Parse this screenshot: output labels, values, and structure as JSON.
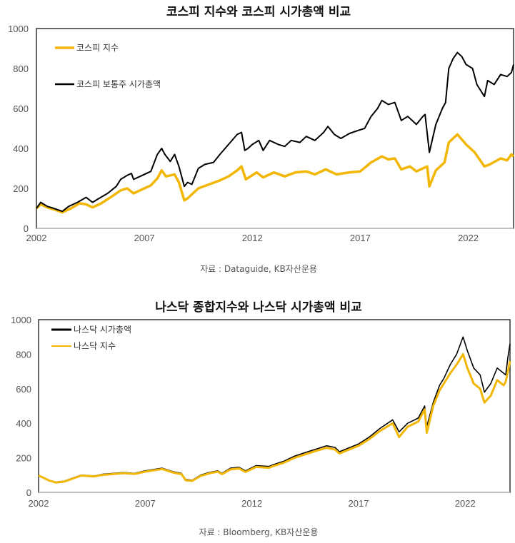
{
  "chart_data": [
    {
      "type": "line",
      "title": "코스피 지수와 코스피 시가총액 비교",
      "source": "자료 : Dataguide, KB자산운용",
      "xlabel": "",
      "ylabel": "",
      "xlim": [
        2002,
        2024.1
      ],
      "ylim": [
        0,
        1000
      ],
      "xticks": [
        "2002",
        "2007",
        "2012",
        "2017",
        "2022"
      ],
      "yticks": [
        "0",
        "200",
        "400",
        "600",
        "800",
        "1000"
      ],
      "grid": false,
      "legend_position": "top-left",
      "series": [
        {
          "name": "코스피 지수",
          "color": "#F2B705",
          "x": [
            2002,
            2002.2,
            2002.5,
            2002.8,
            2003.2,
            2003.6,
            2004.0,
            2004.3,
            2004.6,
            2005.0,
            2005.5,
            2005.9,
            2006.2,
            2006.5,
            2007.0,
            2007.3,
            2007.6,
            2007.8,
            2008.0,
            2008.4,
            2008.6,
            2008.85,
            2009.0,
            2009.5,
            2010.0,
            2010.5,
            2010.9,
            2011.3,
            2011.5,
            2011.7,
            2012.2,
            2012.5,
            2013.0,
            2013.5,
            2014.0,
            2014.5,
            2014.9,
            2015.4,
            2015.9,
            2016.5,
            2017.0,
            2017.5,
            2018.0,
            2018.3,
            2018.6,
            2018.9,
            2019.3,
            2019.6,
            2019.9,
            2020.1,
            2020.2,
            2020.5,
            2020.9,
            2021.1,
            2021.5,
            2021.9,
            2022.3,
            2022.75,
            2023.0,
            2023.5,
            2023.8,
            2024.0,
            2024.1
          ],
          "y": [
            100,
            120,
            105,
            95,
            80,
            100,
            125,
            120,
            105,
            125,
            160,
            190,
            200,
            175,
            200,
            215,
            250,
            290,
            260,
            270,
            230,
            140,
            150,
            200,
            220,
            240,
            260,
            290,
            310,
            245,
            280,
            255,
            280,
            260,
            280,
            285,
            270,
            295,
            270,
            280,
            285,
            330,
            360,
            345,
            350,
            295,
            310,
            285,
            300,
            310,
            210,
            290,
            330,
            430,
            470,
            420,
            380,
            310,
            320,
            350,
            340,
            370,
            360
          ]
        },
        {
          "name": "코스피 보통주 시가총액",
          "color": "#000000",
          "x": [
            2002,
            2002.2,
            2002.5,
            2002.8,
            2003.2,
            2003.5,
            2003.9,
            2004.3,
            2004.6,
            2004.9,
            2005.3,
            2005.7,
            2005.9,
            2006.2,
            2006.4,
            2006.5,
            2006.9,
            2007.3,
            2007.6,
            2007.8,
            2007.95,
            2008.2,
            2008.4,
            2008.6,
            2008.85,
            2009.0,
            2009.2,
            2009.5,
            2009.8,
            2010.2,
            2010.5,
            2010.9,
            2011.3,
            2011.5,
            2011.65,
            2011.8,
            2012.0,
            2012.3,
            2012.5,
            2012.8,
            2013.2,
            2013.5,
            2013.8,
            2014.2,
            2014.5,
            2014.9,
            2015.3,
            2015.5,
            2015.8,
            2016.1,
            2016.5,
            2016.9,
            2017.2,
            2017.5,
            2017.8,
            2018.0,
            2018.3,
            2018.6,
            2018.9,
            2019.2,
            2019.6,
            2019.9,
            2020.0,
            2020.2,
            2020.5,
            2020.8,
            2020.95,
            2021.1,
            2021.3,
            2021.5,
            2021.7,
            2021.9,
            2022.2,
            2022.4,
            2022.75,
            2022.9,
            2023.2,
            2023.5,
            2023.8,
            2024.0,
            2024.1
          ],
          "y": [
            100,
            130,
            110,
            100,
            85,
            110,
            130,
            155,
            130,
            150,
            175,
            210,
            245,
            265,
            275,
            245,
            265,
            285,
            370,
            400,
            370,
            335,
            370,
            310,
            210,
            230,
            220,
            300,
            320,
            330,
            370,
            420,
            470,
            480,
            390,
            400,
            420,
            440,
            390,
            440,
            420,
            410,
            440,
            430,
            460,
            440,
            480,
            510,
            470,
            450,
            475,
            490,
            500,
            560,
            600,
            640,
            620,
            630,
            540,
            560,
            520,
            560,
            570,
            380,
            520,
            600,
            630,
            800,
            850,
            880,
            860,
            820,
            800,
            720,
            660,
            740,
            720,
            770,
            760,
            780,
            820
          ]
        }
      ]
    },
    {
      "type": "line",
      "title": "나스닥 종합지수와 나스닥 시가총액 비교",
      "source": "자료 : Bloomberg, KB자산운용",
      "xlabel": "",
      "ylabel": "",
      "xlim": [
        2002,
        2024.1
      ],
      "ylim": [
        0,
        1000
      ],
      "xticks": [
        "2002",
        "2007",
        "2012",
        "2017",
        "2022"
      ],
      "yticks": [
        "0",
        "200",
        "400",
        "600",
        "800",
        "1000"
      ],
      "grid": false,
      "legend_position": "top-left",
      "series": [
        {
          "name": "나스닥 시가총액",
          "color": "#000000",
          "x": [
            2002,
            2002.5,
            2002.8,
            2003.2,
            2004.0,
            2004.6,
            2005.0,
            2006.0,
            2006.5,
            2007.0,
            2007.8,
            2008.3,
            2008.7,
            2008.9,
            2009.2,
            2009.6,
            2010.0,
            2010.4,
            2010.6,
            2011.0,
            2011.4,
            2011.7,
            2012.2,
            2012.8,
            2013.0,
            2013.5,
            2014.0,
            2014.5,
            2015.0,
            2015.5,
            2015.9,
            2016.1,
            2016.5,
            2017.0,
            2017.5,
            2018.0,
            2018.6,
            2018.9,
            2019.3,
            2019.8,
            2020.1,
            2020.2,
            2020.5,
            2020.8,
            2021.0,
            2021.3,
            2021.6,
            2021.9,
            2022.1,
            2022.4,
            2022.7,
            2022.9,
            2023.2,
            2023.5,
            2023.8,
            2023.9,
            2024.0,
            2024.1
          ],
          "y": [
            100,
            70,
            60,
            65,
            100,
            95,
            105,
            115,
            110,
            125,
            140,
            120,
            110,
            75,
            70,
            100,
            115,
            125,
            110,
            140,
            145,
            125,
            155,
            150,
            160,
            180,
            210,
            230,
            250,
            270,
            260,
            235,
            255,
            280,
            320,
            370,
            420,
            350,
            400,
            430,
            500,
            380,
            520,
            620,
            660,
            740,
            800,
            900,
            820,
            720,
            680,
            580,
            630,
            720,
            690,
            680,
            780,
            860
          ]
        },
        {
          "name": "나스닥 지수",
          "color": "#F2B705",
          "x": [
            2002,
            2002.5,
            2002.8,
            2003.2,
            2004.0,
            2004.6,
            2005.0,
            2006.0,
            2006.5,
            2007.0,
            2007.8,
            2008.3,
            2008.7,
            2008.9,
            2009.2,
            2009.6,
            2010.0,
            2010.4,
            2010.6,
            2011.0,
            2011.4,
            2011.7,
            2012.2,
            2012.8,
            2013.0,
            2013.5,
            2014.0,
            2014.5,
            2015.0,
            2015.5,
            2015.9,
            2016.1,
            2016.5,
            2017.0,
            2017.5,
            2018.0,
            2018.6,
            2018.9,
            2019.3,
            2019.8,
            2020.1,
            2020.2,
            2020.5,
            2020.8,
            2021.0,
            2021.3,
            2021.6,
            2021.9,
            2022.1,
            2022.4,
            2022.7,
            2022.9,
            2023.2,
            2023.5,
            2023.8,
            2023.9,
            2024.0,
            2024.1
          ],
          "y": [
            98,
            68,
            57,
            62,
            97,
            92,
            101,
            111,
            106,
            120,
            135,
            115,
            105,
            70,
            66,
            95,
            110,
            120,
            105,
            133,
            138,
            118,
            147,
            142,
            152,
            172,
            200,
            220,
            240,
            258,
            248,
            225,
            245,
            270,
            308,
            355,
            400,
            320,
            380,
            410,
            480,
            345,
            500,
            590,
            630,
            690,
            740,
            800,
            720,
            630,
            600,
            520,
            560,
            650,
            620,
            640,
            700,
            760
          ]
        }
      ]
    }
  ]
}
